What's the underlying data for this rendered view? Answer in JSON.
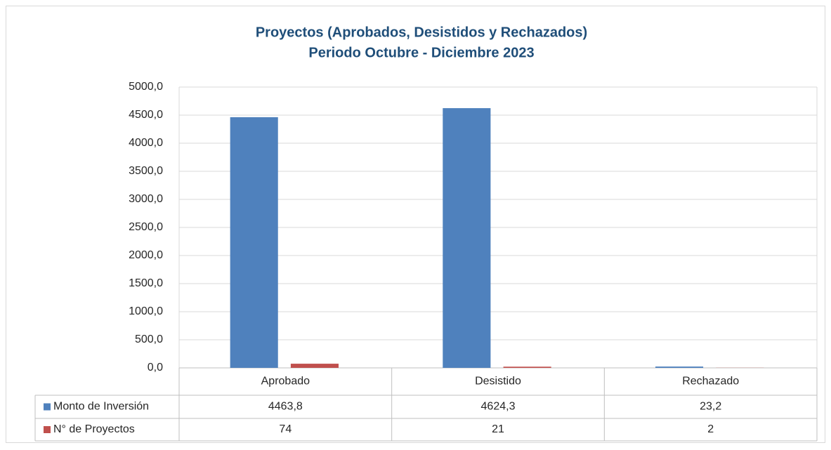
{
  "chart_data": {
    "type": "bar",
    "title": "Proyectos (Aprobados, Desistidos y Rechazados)",
    "subtitle": "Periodo Octubre - Diciembre 2023",
    "categories": [
      "Aprobado",
      "Desistido",
      "Rechazado"
    ],
    "series": [
      {
        "name": "Monto de Inversión",
        "color": "#4f81bd",
        "values": [
          4463.8,
          4624.3,
          23.2
        ],
        "value_labels": [
          "4463,8",
          "4624,3",
          "23,2"
        ]
      },
      {
        "name": "N° de Proyectos",
        "color": "#c0504d",
        "values": [
          74,
          21,
          2
        ]
      }
    ],
    "ylim": [
      0,
      5000
    ],
    "yticks": [
      {
        "value": 0,
        "label": "0,0"
      },
      {
        "value": 500,
        "label": "500,0"
      },
      {
        "value": 1000,
        "label": "1000,0"
      },
      {
        "value": 1500,
        "label": "1500,0"
      },
      {
        "value": 2000,
        "label": "2000,0"
      },
      {
        "value": 2500,
        "label": "2500,0"
      },
      {
        "value": 3000,
        "label": "3000,0"
      },
      {
        "value": 3500,
        "label": "3500,0"
      },
      {
        "value": 4000,
        "label": "4000,0"
      },
      {
        "value": 4500,
        "label": "4500,0"
      },
      {
        "value": 5000,
        "label": "5000,0"
      }
    ],
    "grid": true
  }
}
